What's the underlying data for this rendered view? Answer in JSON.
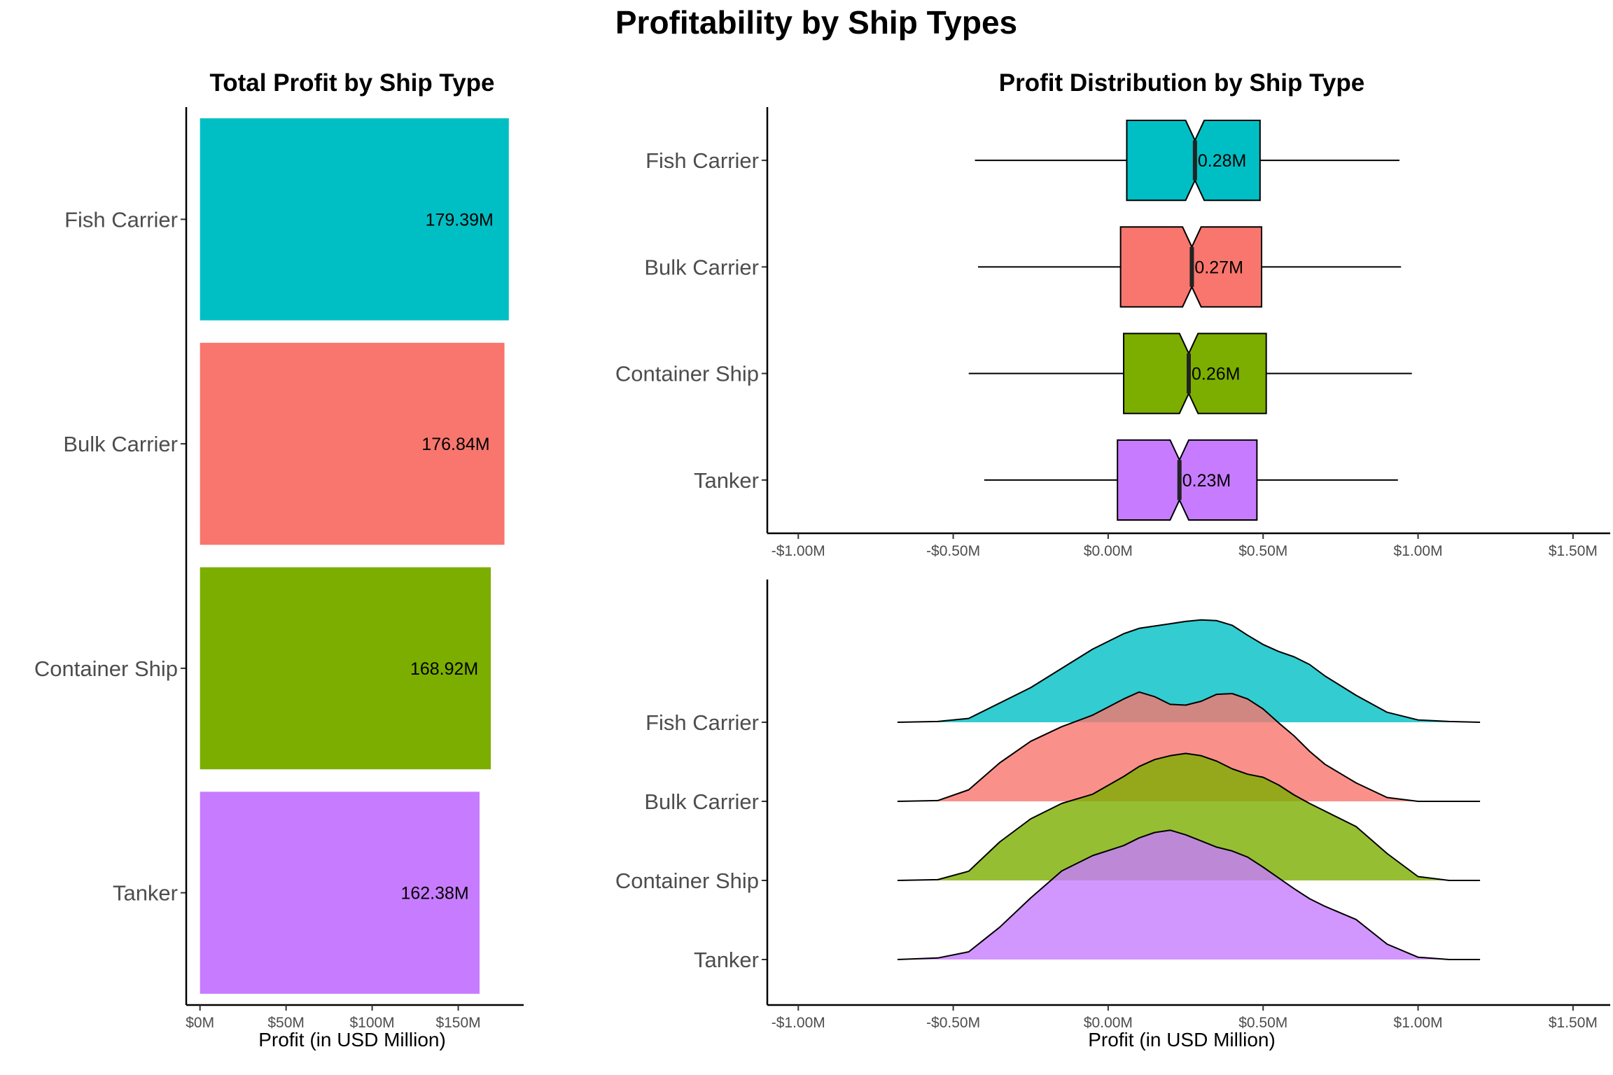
{
  "title": "Profitability by Ship Types",
  "colors": {
    "Fish Carrier": "#00BFC4",
    "Bulk Carrier": "#F8766D",
    "Container Ship": "#7CAE00",
    "Tanker": "#C77CFF"
  },
  "chart_data": [
    {
      "type": "bar",
      "orientation": "horizontal",
      "title": "Total Profit by Ship Type",
      "xlabel": "Profit (in USD Million)",
      "ylabel": "",
      "categories": [
        "Fish Carrier",
        "Bulk Carrier",
        "Container Ship",
        "Tanker"
      ],
      "values": [
        179.39,
        176.84,
        168.92,
        162.38
      ],
      "value_labels": [
        "179.39M",
        "176.84M",
        "168.92M",
        "162.38M"
      ],
      "xlim": [
        -8,
        188
      ],
      "x_ticks": [
        0,
        50,
        100,
        150
      ],
      "x_tick_labels": [
        "$0M",
        "$50M",
        "$100M",
        "$150M"
      ],
      "grid": false,
      "legend": "none"
    },
    {
      "type": "boxplot",
      "notched": true,
      "orientation": "horizontal",
      "title": "Profit Distribution by Ship Type",
      "xlabel": "",
      "categories": [
        "Fish Carrier",
        "Bulk Carrier",
        "Container Ship",
        "Tanker"
      ],
      "boxes": [
        {
          "name": "Fish Carrier",
          "whisker_low": -0.43,
          "q1": 0.06,
          "median": 0.28,
          "q3": 0.49,
          "whisker_high": 0.94,
          "notch": 0.03,
          "label": "0.28M"
        },
        {
          "name": "Bulk Carrier",
          "whisker_low": -0.42,
          "q1": 0.04,
          "median": 0.27,
          "q3": 0.495,
          "whisker_high": 0.945,
          "notch": 0.03,
          "label": "0.27M"
        },
        {
          "name": "Container Ship",
          "whisker_low": -0.45,
          "q1": 0.05,
          "median": 0.26,
          "q3": 0.51,
          "whisker_high": 0.98,
          "notch": 0.03,
          "label": "0.26M"
        },
        {
          "name": "Tanker",
          "whisker_low": -0.4,
          "q1": 0.03,
          "median": 0.23,
          "q3": 0.48,
          "whisker_high": 0.935,
          "notch": 0.03,
          "label": "0.23M"
        }
      ],
      "xlim": [
        -1.1,
        1.62
      ],
      "x_ticks": [
        -1.0,
        -0.5,
        0.0,
        0.5,
        1.0,
        1.5
      ],
      "x_tick_labels": [
        "-$1.00M",
        "-$0.50M",
        "$0.00M",
        "$0.50M",
        "$1.00M",
        "$1.50M"
      ],
      "grid": false,
      "legend": "none"
    },
    {
      "type": "area",
      "subtype": "ridgeline-density",
      "xlabel": "Profit (in USD Million)",
      "categories": [
        "Fish Carrier",
        "Bulk Carrier",
        "Container Ship",
        "Tanker"
      ],
      "x": [
        -0.68,
        -0.55,
        -0.45,
        -0.35,
        -0.25,
        -0.15,
        -0.05,
        0.05,
        0.1,
        0.15,
        0.2,
        0.25,
        0.3,
        0.35,
        0.4,
        0.45,
        0.5,
        0.55,
        0.6,
        0.65,
        0.7,
        0.8,
        0.9,
        1.0,
        1.1,
        1.2
      ],
      "series": [
        {
          "name": "Fish Carrier",
          "values": [
            0.0,
            0.01,
            0.05,
            0.25,
            0.45,
            0.7,
            0.95,
            1.15,
            1.22,
            1.25,
            1.28,
            1.31,
            1.33,
            1.32,
            1.26,
            1.13,
            1.01,
            0.92,
            0.85,
            0.75,
            0.6,
            0.35,
            0.13,
            0.03,
            0.01,
            0.0
          ]
        },
        {
          "name": "Bulk Carrier",
          "values": [
            0.0,
            0.01,
            0.15,
            0.5,
            0.78,
            0.97,
            1.12,
            1.33,
            1.42,
            1.36,
            1.26,
            1.25,
            1.3,
            1.39,
            1.4,
            1.33,
            1.2,
            1.02,
            0.85,
            0.65,
            0.48,
            0.24,
            0.05,
            0.0,
            0.0,
            0.0
          ]
        },
        {
          "name": "Container Ship",
          "values": [
            0.0,
            0.01,
            0.12,
            0.5,
            0.8,
            1.0,
            1.12,
            1.35,
            1.48,
            1.57,
            1.62,
            1.65,
            1.62,
            1.55,
            1.45,
            1.38,
            1.34,
            1.24,
            1.11,
            1.0,
            0.9,
            0.7,
            0.35,
            0.05,
            0.0,
            0.0
          ]
        },
        {
          "name": "Tanker",
          "values": [
            0.0,
            0.02,
            0.1,
            0.42,
            0.8,
            1.15,
            1.35,
            1.48,
            1.58,
            1.65,
            1.68,
            1.62,
            1.54,
            1.46,
            1.41,
            1.33,
            1.2,
            1.06,
            0.92,
            0.79,
            0.69,
            0.52,
            0.2,
            0.03,
            0.0,
            0.0
          ]
        }
      ],
      "xlim": [
        -1.1,
        1.62
      ],
      "x_ticks": [
        -1.0,
        -0.5,
        0.0,
        0.5,
        1.0,
        1.5
      ],
      "x_tick_labels": [
        "-$1.00M",
        "-$0.50M",
        "$0.00M",
        "$0.50M",
        "$1.00M",
        "$1.50M"
      ],
      "grid": false,
      "legend": "none"
    }
  ]
}
